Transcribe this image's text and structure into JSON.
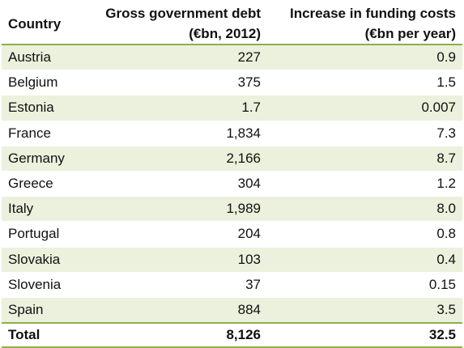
{
  "table": {
    "headers": {
      "country": "Country",
      "debt_line1": "Gross government debt",
      "debt_line2": "(€bn, 2012)",
      "funding_line1": "Increase in funding costs",
      "funding_line2": "(€bn per year)"
    },
    "rows": [
      {
        "country": "Austria",
        "debt": "227",
        "funding": "0.9"
      },
      {
        "country": "Belgium",
        "debt": "375",
        "funding": "1.5"
      },
      {
        "country": "Estonia",
        "debt": "1.7",
        "funding": "0.007"
      },
      {
        "country": "France",
        "debt": "1,834",
        "funding": "7.3"
      },
      {
        "country": "Germany",
        "debt": "2,166",
        "funding": "8.7"
      },
      {
        "country": "Greece",
        "debt": "304",
        "funding": "1.2"
      },
      {
        "country": "Italy",
        "debt": "1,989",
        "funding": "8.0"
      },
      {
        "country": "Portugal",
        "debt": "204",
        "funding": "0.8"
      },
      {
        "country": "Slovakia",
        "debt": "103",
        "funding": "0.4"
      },
      {
        "country": "Slovenia",
        "debt": "37",
        "funding": "0.15"
      },
      {
        "country": "Spain",
        "debt": "884",
        "funding": "3.5"
      }
    ],
    "total": {
      "country": "Total",
      "debt": "8,126",
      "funding": "32.5"
    }
  },
  "colors": {
    "band": "#ebf1dc",
    "rule": "#8cb04a"
  }
}
